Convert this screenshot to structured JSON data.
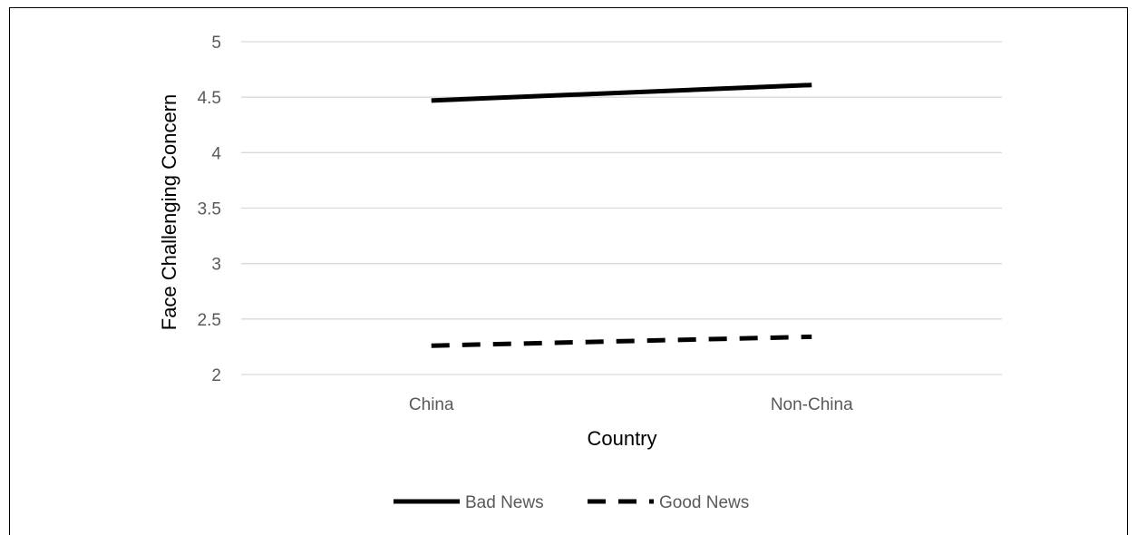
{
  "chart_data": {
    "type": "line",
    "title": "",
    "xlabel": "Country",
    "ylabel": "Face Challenging Concern",
    "categories": [
      "China",
      "Non-China"
    ],
    "y_ticks": [
      "2",
      "2.5",
      "3",
      "3.5",
      "4",
      "4.5",
      "5"
    ],
    "ylim": [
      2,
      5
    ],
    "grid": true,
    "legend_position": "bottom",
    "series": [
      {
        "name": "Bad News",
        "values": [
          4.47,
          4.61
        ],
        "style": "solid",
        "color": "#000000"
      },
      {
        "name": "Good News",
        "values": [
          2.26,
          2.34
        ],
        "style": "dashed",
        "color": "#000000"
      }
    ]
  }
}
